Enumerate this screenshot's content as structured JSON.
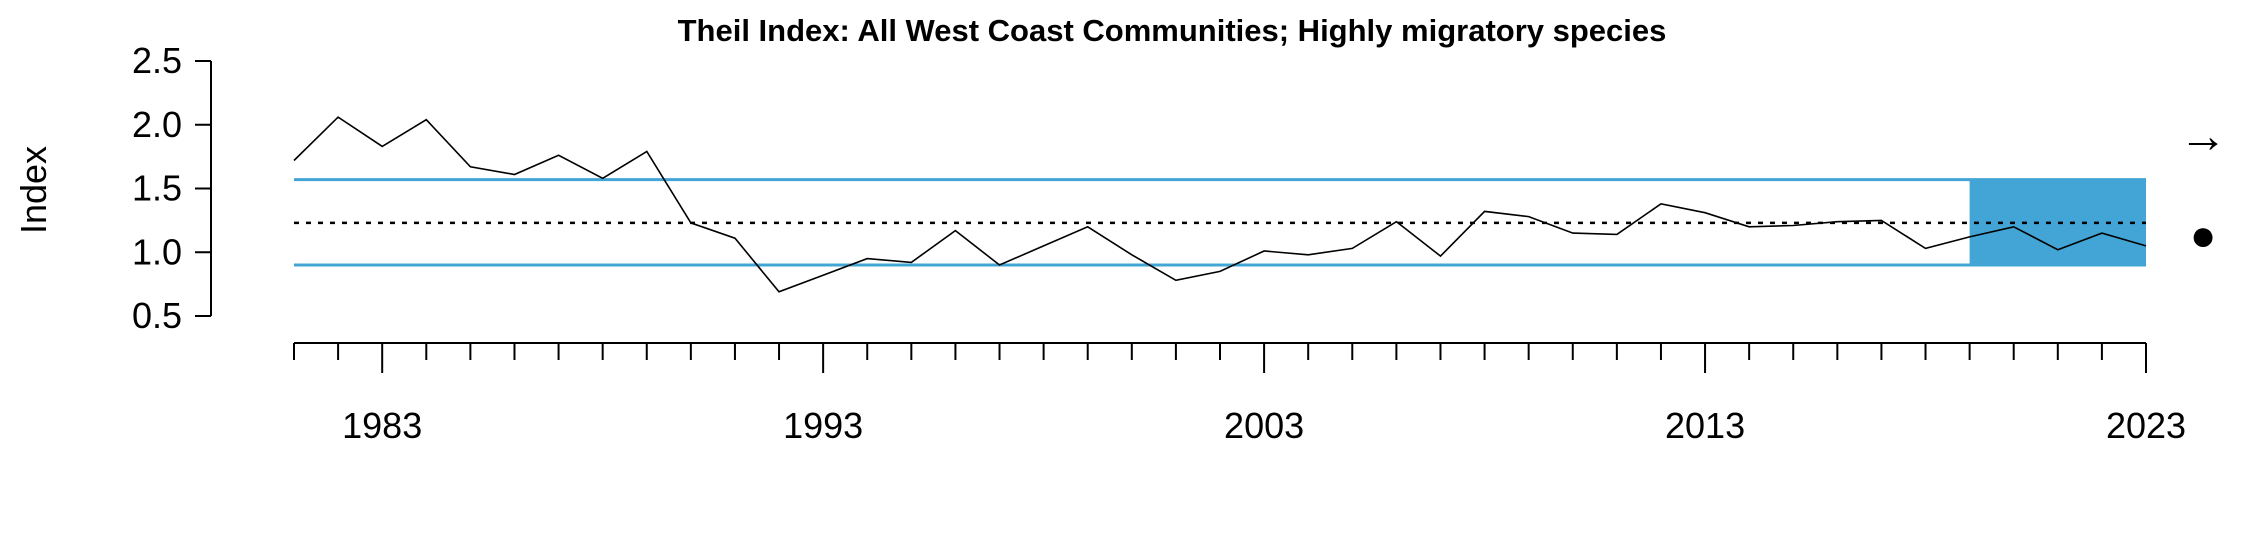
{
  "chart_data": {
    "type": "line",
    "title": "Theil Index: All West Coast Communities; Highly migratory species",
    "xlabel": "",
    "ylabel": "Index",
    "x": [
      1981,
      1982,
      1983,
      1984,
      1985,
      1986,
      1987,
      1988,
      1989,
      1990,
      1991,
      1992,
      1993,
      1994,
      1995,
      1996,
      1997,
      1998,
      1999,
      2000,
      2001,
      2002,
      2003,
      2004,
      2005,
      2006,
      2007,
      2008,
      2009,
      2010,
      2011,
      2012,
      2013,
      2014,
      2015,
      2016,
      2017,
      2018,
      2019,
      2020,
      2021,
      2022,
      2023
    ],
    "series": [
      {
        "values": [
          1.72,
          2.06,
          1.83,
          2.04,
          1.67,
          1.61,
          1.76,
          1.58,
          1.79,
          1.23,
          1.11,
          0.69,
          0.82,
          0.95,
          0.92,
          1.17,
          0.9,
          1.05,
          1.2,
          0.98,
          0.78,
          0.85,
          1.01,
          0.98,
          1.03,
          1.24,
          0.97,
          1.32,
          1.28,
          1.15,
          1.14,
          1.38,
          1.31,
          1.2,
          1.21,
          1.24,
          1.25,
          1.03,
          1.12,
          1.2,
          1.02,
          1.15,
          1.05
        ]
      }
    ],
    "ylim": [
      0.5,
      2.5
    ],
    "yticks": [
      "0.5",
      "1.0",
      "1.5",
      "2.0",
      "2.5"
    ],
    "xlim": [
      1981,
      2023
    ],
    "xtick_labels": [
      "1983",
      "1993",
      "2003",
      "2013",
      "2023"
    ],
    "xtick_label_years": [
      1983,
      1993,
      2003,
      2013,
      2023
    ],
    "mean": 1.23,
    "upper_sd": 1.57,
    "lower_sd": 0.9,
    "highlight_start": 2019,
    "highlight_end": 2023,
    "grid": false,
    "trend_symbol": "→",
    "mean_symbol": "●",
    "colors": {
      "sd_lines": "#42a5d5",
      "highlight": "#42a5d5",
      "series": "#000000",
      "mean_line": "#000000"
    }
  }
}
